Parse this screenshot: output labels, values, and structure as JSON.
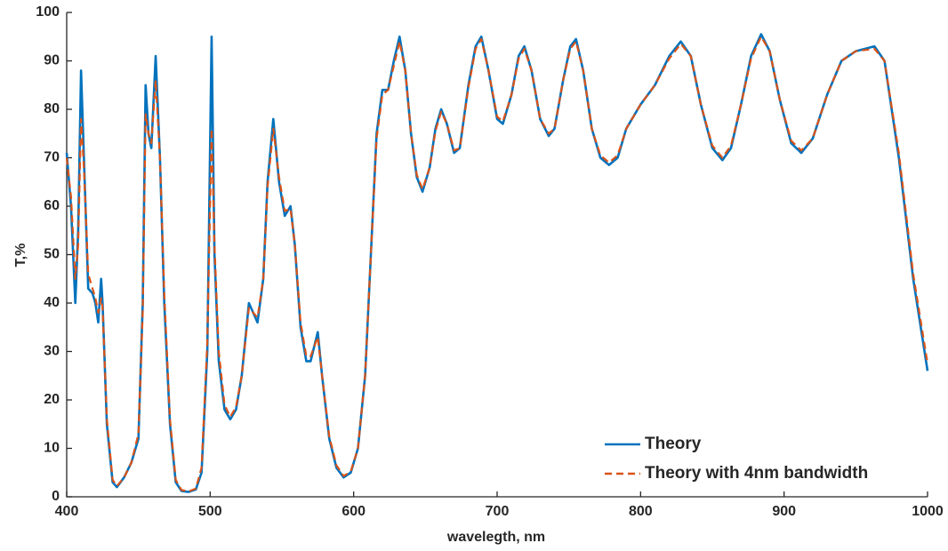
{
  "chart_data": {
    "type": "line",
    "xlabel": "wavelegth, nm",
    "ylabel": "T,%",
    "x": [
      400,
      403,
      406,
      408,
      410,
      412,
      415,
      418,
      420,
      422,
      424,
      425,
      428,
      432,
      435,
      440,
      445,
      450,
      453,
      455,
      457,
      459,
      462,
      465,
      468,
      472,
      476,
      480,
      485,
      490,
      494,
      498,
      501,
      503,
      506,
      510,
      514,
      518,
      522,
      527,
      530,
      533,
      537,
      540,
      544,
      548,
      552,
      556,
      559,
      563,
      567,
      570,
      575,
      578,
      583,
      588,
      593,
      598,
      603,
      608,
      612,
      616,
      620,
      624,
      628,
      632,
      636,
      640,
      644,
      648,
      653,
      657,
      661,
      665,
      670,
      674,
      680,
      685,
      689,
      694,
      700,
      704,
      710,
      715,
      719,
      724,
      730,
      736,
      740,
      746,
      751,
      755,
      760,
      766,
      772,
      778,
      784,
      790,
      800,
      810,
      820,
      828,
      835,
      842,
      850,
      857,
      863,
      870,
      877,
      884,
      890,
      897,
      905,
      912,
      920,
      930,
      940,
      950,
      963,
      970,
      980,
      990,
      1000
    ],
    "series": [
      {
        "name": "Theory",
        "color": "#0072bd",
        "dash": false,
        "values": [
          71,
          60,
          40,
          55,
          88,
          70,
          43,
          42,
          40,
          36,
          45,
          40,
          15,
          3,
          2,
          4,
          7,
          12,
          40,
          85,
          75,
          72,
          91,
          70,
          40,
          15,
          3,
          1.2,
          1,
          1.5,
          5,
          30,
          95,
          50,
          28,
          18,
          16,
          18,
          25,
          40,
          38,
          36,
          45,
          65,
          78,
          65,
          58,
          60,
          52,
          35,
          28,
          28,
          34,
          25,
          12,
          6,
          4,
          5,
          10,
          25,
          50,
          75,
          84,
          84,
          90,
          95,
          88,
          75,
          66,
          63,
          68,
          76,
          80,
          77,
          71,
          72,
          85,
          93,
          95,
          88,
          78,
          77,
          83,
          91,
          93,
          88,
          78,
          74.5,
          76,
          86,
          93,
          94.5,
          88,
          76,
          70,
          68.5,
          70,
          76,
          81,
          85,
          91,
          94,
          91,
          81,
          72,
          69.5,
          72,
          81,
          91,
          95.5,
          92,
          82,
          73,
          71,
          74,
          83,
          90,
          92,
          93,
          90,
          70,
          45,
          26
        ]
      },
      {
        "name": "Theory with 4nm bandwidth",
        "color": "#d95319",
        "dash": true,
        "values": [
          70,
          62,
          45,
          52,
          78,
          68,
          46,
          43,
          41,
          38,
          41,
          39,
          16,
          3.5,
          2.2,
          4,
          7,
          13,
          38,
          79,
          75,
          73,
          86,
          70,
          42,
          16,
          3.5,
          1.4,
          1.1,
          1.7,
          6,
          32,
          76,
          52,
          30,
          19,
          16.5,
          18.5,
          25,
          39,
          38,
          37,
          45,
          64,
          76,
          66,
          59,
          59.5,
          52,
          36,
          29,
          29,
          33,
          25,
          12.5,
          6.5,
          4.3,
          5.2,
          10,
          25,
          50,
          74,
          83,
          84,
          89,
          94,
          88,
          75,
          66.5,
          63.5,
          68,
          75.5,
          79.5,
          77,
          71.5,
          72,
          84.5,
          92.5,
          94.5,
          88,
          78.5,
          77.5,
          83,
          90.5,
          92.5,
          88,
          78,
          75,
          76,
          86,
          92.5,
          94,
          88,
          76,
          70.5,
          69,
          70.5,
          76,
          81,
          85,
          90.5,
          93.5,
          91,
          81,
          72.5,
          70,
          72.5,
          81,
          90.5,
          95,
          92,
          82,
          73.5,
          71.5,
          74,
          83,
          90,
          92,
          92.5,
          90,
          71,
          46,
          27.5
        ]
      }
    ],
    "xlim": [
      400,
      1000
    ],
    "xticks": [
      400,
      500,
      600,
      700,
      800,
      900,
      1000
    ],
    "ylim": [
      0,
      100
    ],
    "yticks": [
      0,
      10,
      20,
      30,
      40,
      50,
      60,
      70,
      80,
      90,
      100
    ],
    "legend": "lower right",
    "grid": false
  }
}
